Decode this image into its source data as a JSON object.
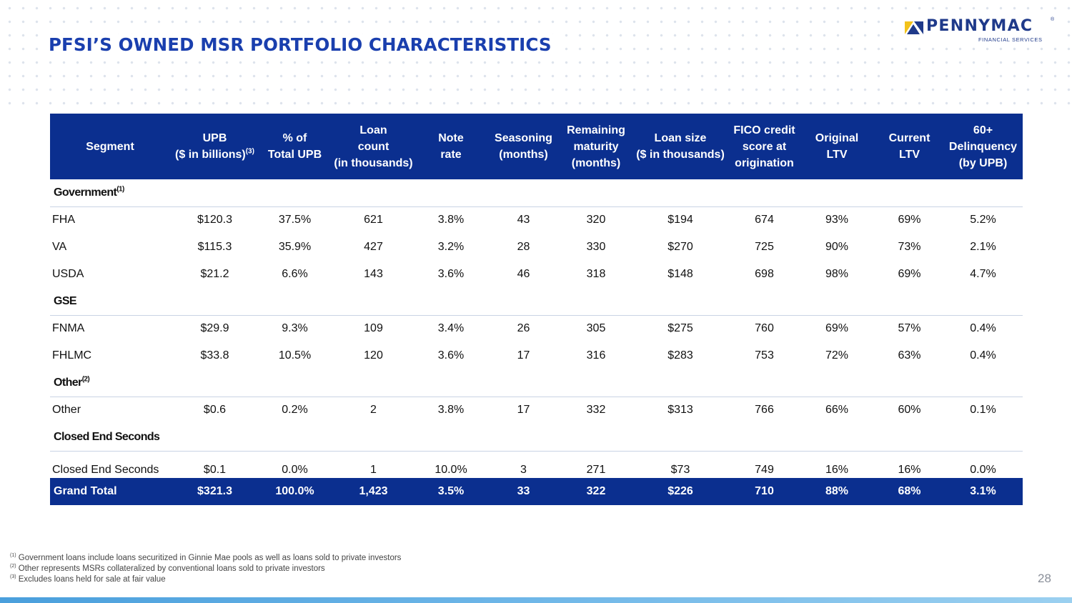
{
  "page": {
    "title": "PFSI’S OWNED MSR PORTFOLIO CHARACTERISTICS",
    "page_number": "28"
  },
  "logo": {
    "name": "PENNYMAC",
    "registered": "®",
    "subtitle": "FINANCIAL SERVICES",
    "colors": {
      "primary": "#1f3a8a",
      "accent_yellow": "#f2c21b",
      "accent_blue": "#1f3a8a"
    }
  },
  "colors": {
    "header_bg": "#0b2f8f",
    "title": "#1a3fae"
  },
  "table": {
    "headers": [
      {
        "lines": [
          "Segment"
        ]
      },
      {
        "lines": [
          "UPB",
          "($ in billions)"
        ],
        "sup": "(3)"
      },
      {
        "lines": [
          "% of",
          "Total UPB"
        ]
      },
      {
        "lines": [
          "Loan",
          "count",
          "(in thousands)"
        ]
      },
      {
        "lines": [
          "Note",
          "rate"
        ]
      },
      {
        "lines": [
          "Seasoning",
          "(months)"
        ]
      },
      {
        "lines": [
          "Remaining",
          "maturity",
          "(months)"
        ]
      },
      {
        "lines": [
          "Loan size",
          "($ in thousands)"
        ]
      },
      {
        "lines": [
          "FICO credit",
          "score at",
          "origination"
        ]
      },
      {
        "lines": [
          "Original",
          "LTV"
        ]
      },
      {
        "lines": [
          "Current",
          "LTV"
        ]
      },
      {
        "lines": [
          "60+",
          "Delinquency",
          "(by UPB)"
        ]
      }
    ],
    "groups": [
      {
        "label": "Government",
        "sup": "(1)",
        "rows": [
          [
            "FHA",
            "$120.3",
            "37.5%",
            "621",
            "3.8%",
            "43",
            "320",
            "$194",
            "674",
            "93%",
            "69%",
            "5.2%"
          ],
          [
            "VA",
            "$115.3",
            "35.9%",
            "427",
            "3.2%",
            "28",
            "330",
            "$270",
            "725",
            "90%",
            "73%",
            "2.1%"
          ],
          [
            "USDA",
            "$21.2",
            "6.6%",
            "143",
            "3.6%",
            "46",
            "318",
            "$148",
            "698",
            "98%",
            "69%",
            "4.7%"
          ]
        ]
      },
      {
        "label": "GSE",
        "sup": "",
        "rows": [
          [
            "FNMA",
            "$29.9",
            "9.3%",
            "109",
            "3.4%",
            "26",
            "305",
            "$275",
            "760",
            "69%",
            "57%",
            "0.4%"
          ],
          [
            "FHLMC",
            "$33.8",
            "10.5%",
            "120",
            "3.6%",
            "17",
            "316",
            "$283",
            "753",
            "72%",
            "63%",
            "0.4%"
          ]
        ]
      },
      {
        "label": "Other",
        "sup": "(2)",
        "rows": [
          [
            "Other",
            "$0.6",
            "0.2%",
            "2",
            "3.8%",
            "17",
            "332",
            "$313",
            "766",
            "66%",
            "60%",
            "0.1%"
          ]
        ]
      },
      {
        "label": "Closed End Seconds",
        "sup": "",
        "rows": [
          [
            "Closed End Seconds",
            "$0.1",
            "0.0%",
            "1",
            "10.0%",
            "3",
            "271",
            "$73",
            "749",
            "16%",
            "16%",
            "0.0%"
          ]
        ]
      }
    ],
    "total": [
      "Grand Total",
      "$321.3",
      "100.0%",
      "1,423",
      "3.5%",
      "33",
      "322",
      "$226",
      "710",
      "88%",
      "68%",
      "3.1%"
    ]
  },
  "footnotes": [
    {
      "sup": "(1)",
      "text": "Government loans include loans securitized in Ginnie Mae pools as well as loans sold to private investors"
    },
    {
      "sup": "(2)",
      "text": "Other represents MSRs collateralized by conventional loans sold to private investors"
    },
    {
      "sup": "(3)",
      "text": "Excludes loans held for sale at fair value"
    }
  ]
}
